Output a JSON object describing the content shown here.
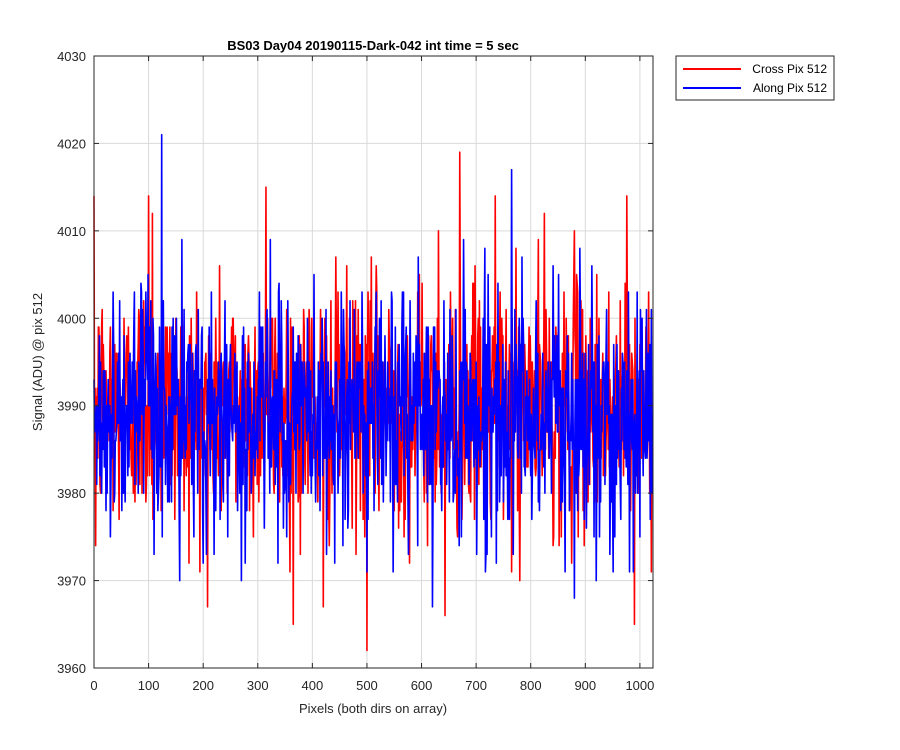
{
  "colors": {
    "cross": "#ff0000",
    "along": "#0000ff",
    "grid": "#d9d9d9",
    "axis": "#262626"
  },
  "chart_data": {
    "type": "line",
    "title": "BS03 Day04 20190115-Dark-042 int time = 5 sec",
    "xlabel": "Pixels (both dirs on array)",
    "ylabel": "Signal (ADU) @ pix 512",
    "xlim": [
      0,
      1024
    ],
    "ylim": [
      3960,
      4030
    ],
    "xticks": [
      0,
      100,
      200,
      300,
      400,
      500,
      600,
      700,
      800,
      900,
      1000
    ],
    "yticks": [
      3960,
      3970,
      3980,
      3990,
      4000,
      4010,
      4020,
      4030
    ],
    "grid": true,
    "legend_position": "outside-top-right",
    "series_stats": "approximate: noise about mean 3990 ADU, std ~7 ADU, 1024 samples each",
    "series": [
      {
        "name": "Cross Pix 512",
        "color": "#ff0000",
        "mean": 3990,
        "std": 7,
        "n": 1024,
        "peaks": [
          [
            0,
            4014
          ],
          [
            3,
            3974
          ],
          [
            100,
            4014
          ],
          [
            107,
            4012
          ],
          [
            208,
            3967
          ],
          [
            315,
            4015
          ],
          [
            365,
            3965
          ],
          [
            420,
            3967
          ],
          [
            500,
            3962
          ],
          [
            631,
            4010
          ],
          [
            643,
            3966
          ],
          [
            670,
            4019
          ],
          [
            735,
            4014
          ],
          [
            780,
            3970
          ],
          [
            825,
            4012
          ],
          [
            880,
            4010
          ],
          [
            976,
            4014
          ],
          [
            990,
            3965
          ]
        ]
      },
      {
        "name": "Along Pix 512",
        "color": "#0000ff",
        "mean": 3989,
        "std": 7,
        "n": 1024,
        "peaks": [
          [
            124,
            4021
          ],
          [
            157,
            3970
          ],
          [
            200,
            3972
          ],
          [
            270,
            3970
          ],
          [
            500,
            3971
          ],
          [
            565,
            4003
          ],
          [
            620,
            3967
          ],
          [
            765,
            4017
          ],
          [
            880,
            3968
          ],
          [
            920,
            3970
          ],
          [
            1000,
            3975
          ]
        ]
      }
    ]
  }
}
